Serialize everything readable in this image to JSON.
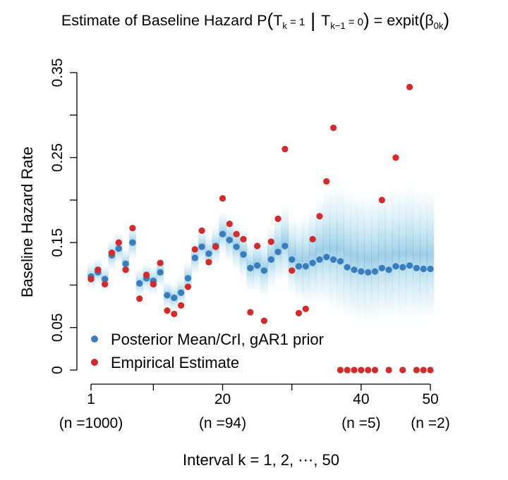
{
  "chart_data": {
    "type": "scatter",
    "title": {
      "pre": "Estimate of Baseline Hazard P",
      "t1": "T",
      "t1_sub": "k",
      "eq1": " = 1",
      "t2": "T",
      "t2_sub": "k−1",
      "eq2": " = 0",
      "post": " = expit",
      "beta": "β",
      "beta_sub": "0k"
    },
    "ylabel": "Baseline Hazard Rate",
    "xlabel": "Interval k = 1, 2, ⋯, 50",
    "ylim": [
      0,
      0.35
    ],
    "xlim": [
      1,
      50
    ],
    "y_ticks": [
      {
        "value": 0,
        "label": "0"
      },
      {
        "value": 0.05,
        "label": "0.05"
      },
      {
        "value": 0.15,
        "label": "0.15"
      },
      {
        "value": 0.25,
        "label": "0.25"
      },
      {
        "value": 0.35,
        "label": "0.35"
      }
    ],
    "y_minor_ticks": [
      0.1,
      0.2,
      0.3
    ],
    "x_ticks": [
      {
        "value": 1,
        "label": "1",
        "n": "(n =1000)"
      },
      {
        "value": 20,
        "label": "20",
        "n": "(n =94)"
      },
      {
        "value": 40,
        "label": "40",
        "n": "(n =5)"
      },
      {
        "value": 50,
        "label": "50",
        "n": "(n =2)"
      }
    ],
    "x_minor_ticks": [
      10,
      30
    ],
    "legend": {
      "position": "bottom-left",
      "entries": [
        {
          "label": "Posterior Mean/CrI, gAR1 prior",
          "color": "#3a7dbf"
        },
        {
          "label": "Empirical Estimate",
          "color": "#d42a2a"
        }
      ]
    },
    "series": [
      {
        "name": "Posterior Mean/CrI, gAR1 prior",
        "color": "#3a7dbf",
        "x": [
          1,
          2,
          3,
          4,
          5,
          6,
          7,
          8,
          9,
          10,
          11,
          12,
          13,
          14,
          15,
          16,
          17,
          18,
          19,
          20,
          21,
          22,
          23,
          24,
          25,
          26,
          27,
          28,
          29,
          30,
          31,
          32,
          33,
          34,
          35,
          36,
          37,
          38,
          39,
          40,
          41,
          42,
          43,
          44,
          45,
          46,
          47,
          48,
          49,
          50
        ],
        "y": [
          0.11,
          0.115,
          0.107,
          0.135,
          0.143,
          0.125,
          0.15,
          0.102,
          0.108,
          0.105,
          0.115,
          0.088,
          0.085,
          0.091,
          0.108,
          0.132,
          0.145,
          0.137,
          0.146,
          0.16,
          0.153,
          0.145,
          0.136,
          0.12,
          0.123,
          0.117,
          0.13,
          0.139,
          0.146,
          0.13,
          0.122,
          0.122,
          0.126,
          0.13,
          0.133,
          0.13,
          0.128,
          0.121,
          0.118,
          0.116,
          0.115,
          0.116,
          0.12,
          0.118,
          0.122,
          0.121,
          0.123,
          0.12,
          0.119,
          0.119
        ],
        "band_lower": [
          0.095,
          0.1,
          0.092,
          0.117,
          0.125,
          0.108,
          0.13,
          0.086,
          0.091,
          0.088,
          0.097,
          0.072,
          0.069,
          0.074,
          0.09,
          0.112,
          0.124,
          0.116,
          0.124,
          0.136,
          0.128,
          0.118,
          0.108,
          0.092,
          0.093,
          0.086,
          0.096,
          0.102,
          0.106,
          0.09,
          0.081,
          0.077,
          0.078,
          0.078,
          0.076,
          0.07,
          0.066,
          0.061,
          0.058,
          0.057,
          0.056,
          0.057,
          0.059,
          0.058,
          0.06,
          0.06,
          0.061,
          0.06,
          0.06,
          0.061
        ],
        "band_upper": [
          0.126,
          0.131,
          0.123,
          0.154,
          0.162,
          0.143,
          0.171,
          0.119,
          0.126,
          0.123,
          0.134,
          0.105,
          0.102,
          0.109,
          0.127,
          0.153,
          0.168,
          0.159,
          0.17,
          0.186,
          0.18,
          0.175,
          0.167,
          0.152,
          0.158,
          0.153,
          0.17,
          0.183,
          0.195,
          0.18,
          0.178,
          0.182,
          0.193,
          0.203,
          0.212,
          0.215,
          0.217,
          0.212,
          0.21,
          0.208,
          0.206,
          0.207,
          0.212,
          0.209,
          0.214,
          0.213,
          0.216,
          0.212,
          0.211,
          0.211
        ]
      },
      {
        "name": "Empirical Estimate",
        "color": "#d42a2a",
        "x": [
          1,
          2,
          3,
          4,
          5,
          6,
          7,
          8,
          9,
          10,
          11,
          12,
          13,
          14,
          15,
          16,
          17,
          18,
          19,
          20,
          21,
          22,
          23,
          24,
          25,
          26,
          27,
          28,
          29,
          30,
          31,
          32,
          33,
          34,
          35,
          36,
          37,
          38,
          39,
          40,
          41,
          42,
          43,
          44,
          45,
          46,
          47,
          48,
          49,
          50
        ],
        "y": [
          0.107,
          0.118,
          0.101,
          0.138,
          0.15,
          0.118,
          0.167,
          0.084,
          0.112,
          0.101,
          0.126,
          0.07,
          0.066,
          0.076,
          0.098,
          0.142,
          0.164,
          0.127,
          0.145,
          0.202,
          0.172,
          0.16,
          0.154,
          0.068,
          0.146,
          0.058,
          0.151,
          0.178,
          0.26,
          0.117,
          0.067,
          0.072,
          0.154,
          0.181,
          0.222,
          0.285,
          0,
          0,
          0,
          0,
          0,
          0,
          0.2,
          0,
          0.25,
          0,
          0.333,
          0,
          0,
          0
        ]
      }
    ]
  }
}
